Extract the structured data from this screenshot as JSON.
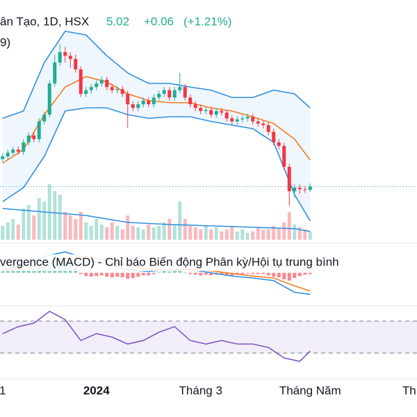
{
  "header": {
    "symbol": "ân Tạo, 1D, HSX",
    "price": "5.02",
    "change": "+0.06",
    "change_pct": "(+1.21%)",
    "indicator": "9)"
  },
  "chart_data": [
    {
      "type": "candlestick",
      "xlim": [
        -0.5,
        79.5
      ],
      "ylim": [
        4.0,
        8.6
      ],
      "up_color": "#22ab94",
      "down_color": "#f23645",
      "last_price_line": true,
      "open": [
        5.55,
        5.6,
        5.67,
        5.73,
        5.69,
        5.87,
        6.0,
        5.93,
        6.27,
        6.4,
        7.0,
        7.4,
        7.6,
        7.53,
        7.47,
        7.27,
        6.8,
        6.87,
        6.93,
        7.0,
        7.07,
        6.93,
        6.87,
        6.89,
        6.8,
        6.6,
        6.53,
        6.6,
        6.67,
        6.6,
        6.73,
        6.8,
        6.87,
        6.73,
        6.87,
        6.93,
        6.73,
        6.6,
        6.53,
        6.47,
        6.49,
        6.4,
        6.47,
        6.44,
        6.33,
        6.27,
        6.31,
        6.33,
        6.36,
        6.27,
        6.23,
        6.2,
        6.07,
        5.87,
        5.8,
        5.4,
        4.93,
        5.0,
        4.97,
        4.96
      ],
      "high": [
        5.66,
        5.73,
        5.79,
        5.79,
        5.93,
        6.06,
        6.06,
        6.33,
        6.46,
        7.06,
        7.55,
        7.75,
        7.7,
        7.6,
        7.55,
        7.33,
        6.93,
        6.99,
        7.06,
        7.13,
        7.13,
        6.99,
        6.95,
        6.95,
        6.86,
        6.66,
        6.66,
        6.73,
        6.73,
        6.79,
        6.86,
        6.93,
        6.93,
        6.93,
        7.2,
        6.99,
        6.79,
        6.66,
        6.59,
        6.55,
        6.55,
        6.53,
        6.53,
        6.5,
        6.39,
        6.37,
        6.39,
        6.42,
        6.42,
        6.33,
        6.29,
        6.26,
        6.13,
        5.93,
        5.86,
        5.46,
        5.06,
        5.06,
        5.03,
        5.08
      ],
      "low": [
        5.49,
        5.54,
        5.61,
        5.63,
        5.63,
        5.81,
        5.87,
        5.87,
        6.21,
        6.34,
        6.94,
        7.34,
        7.4,
        7.3,
        7.21,
        6.74,
        6.74,
        6.81,
        6.87,
        6.94,
        6.87,
        6.81,
        6.81,
        6.74,
        6.15,
        6.47,
        6.47,
        6.54,
        6.54,
        6.54,
        6.67,
        6.74,
        6.67,
        6.67,
        6.81,
        6.67,
        6.54,
        6.47,
        6.41,
        6.41,
        6.34,
        6.34,
        6.38,
        6.27,
        6.21,
        6.21,
        6.25,
        6.27,
        6.21,
        6.17,
        6.14,
        6.01,
        5.81,
        5.74,
        5.34,
        4.65,
        4.8,
        4.88,
        4.9,
        4.92
      ],
      "close": [
        5.6,
        5.67,
        5.73,
        5.69,
        5.87,
        6.0,
        5.93,
        6.27,
        6.4,
        7.0,
        7.4,
        7.6,
        7.53,
        7.47,
        7.27,
        6.8,
        6.87,
        6.93,
        7.0,
        7.07,
        6.93,
        6.87,
        6.89,
        6.8,
        6.6,
        6.53,
        6.6,
        6.67,
        6.6,
        6.73,
        6.8,
        6.87,
        6.73,
        6.87,
        6.93,
        6.73,
        6.6,
        6.53,
        6.47,
        6.49,
        6.4,
        6.47,
        6.44,
        6.33,
        6.27,
        6.31,
        6.33,
        6.36,
        6.27,
        6.23,
        6.2,
        6.07,
        5.87,
        5.8,
        5.4,
        4.93,
        5.0,
        4.97,
        4.96,
        5.02
      ],
      "lines": [
        {
          "color": "#f57c1f",
          "x": [
            0,
            4,
            8,
            12,
            16,
            20,
            24,
            28,
            32,
            36,
            40,
            44,
            48,
            52,
            56,
            59
          ],
          "values": [
            5.47,
            5.73,
            6.4,
            6.93,
            7.13,
            7.03,
            6.8,
            6.67,
            6.63,
            6.63,
            6.53,
            6.47,
            6.36,
            6.23,
            5.93,
            5.53
          ]
        },
        {
          "color": "#2f8fe0",
          "x": [
            0,
            4,
            8,
            12,
            16,
            20,
            24,
            28,
            32,
            36,
            40,
            44,
            48,
            52,
            56,
            59
          ],
          "values": [
            6.33,
            6.47,
            7.4,
            8.0,
            7.93,
            7.53,
            7.2,
            7.0,
            7.0,
            6.93,
            6.87,
            6.73,
            6.73,
            6.87,
            6.8,
            6.53
          ]
        },
        {
          "color": "#2f8fe0",
          "x": [
            0,
            4,
            8,
            12,
            16,
            20,
            24,
            28,
            32,
            36,
            40,
            44,
            48,
            52,
            56,
            59
          ],
          "values": [
            4.73,
            5.0,
            5.6,
            6.47,
            6.53,
            6.53,
            6.4,
            6.33,
            6.36,
            6.36,
            6.27,
            6.2,
            6.13,
            5.87,
            4.87,
            4.36
          ]
        }
      ],
      "band_fill": "#2f8fe0",
      "volume": {
        "ylim": [
          0,
          100
        ],
        "values": [
          20,
          25,
          30,
          22,
          45,
          50,
          35,
          60,
          55,
          80,
          70,
          65,
          40,
          35,
          30,
          40,
          25,
          20,
          30,
          22,
          18,
          25,
          20,
          15,
          35,
          20,
          18,
          15,
          22,
          18,
          20,
          25,
          30,
          22,
          55,
          30,
          20,
          18,
          15,
          20,
          15,
          18,
          12,
          15,
          20,
          12,
          15,
          10,
          12,
          18,
          14,
          15,
          20,
          16,
          25,
          40,
          22,
          18,
          15,
          12
        ],
        "ma": {
          "color": "#2f8fe0",
          "x": [
            0,
            8,
            16,
            24,
            32,
            40,
            48,
            56,
            59
          ],
          "values": [
            45,
            40,
            35,
            25,
            22,
            20,
            18,
            16,
            12
          ]
        }
      }
    },
    {
      "type": "macd",
      "title": "vergence (MACD) - Chỉ báo Biến động Phân kỳ/Hội tụ trung bình",
      "xlim": [
        -0.5,
        79.5
      ],
      "ylim": [
        -0.4,
        0.4
      ],
      "up_color": "#22ab94",
      "down_color": "#f23645",
      "histogram": [
        0.02,
        0.03,
        0.04,
        0.03,
        0.05,
        0.06,
        0.05,
        0.08,
        0.1,
        0.18,
        0.25,
        0.28,
        0.22,
        0.16,
        0.1,
        -0.02,
        -0.05,
        -0.06,
        -0.05,
        -0.04,
        -0.06,
        -0.07,
        -0.06,
        -0.07,
        -0.09,
        -0.08,
        -0.06,
        -0.04,
        -0.04,
        -0.02,
        0.01,
        0.03,
        0.02,
        0.03,
        0.04,
        0.01,
        -0.02,
        -0.03,
        -0.04,
        -0.03,
        -0.04,
        -0.03,
        -0.02,
        -0.03,
        -0.04,
        -0.03,
        -0.02,
        -0.01,
        -0.02,
        -0.02,
        -0.02,
        -0.04,
        -0.06,
        -0.07,
        -0.1,
        -0.12,
        -0.08,
        -0.05,
        -0.03,
        -0.02
      ],
      "lines": [
        {
          "color": "#2f8fe0",
          "x": [
            0,
            4,
            8,
            12,
            16,
            20,
            24,
            28,
            32,
            36,
            40,
            44,
            48,
            52,
            56,
            59
          ],
          "values": [
            0.05,
            0.1,
            0.25,
            0.32,
            0.22,
            0.12,
            0.05,
            0.02,
            0.05,
            0.05,
            0.0,
            -0.05,
            -0.08,
            -0.12,
            -0.3,
            -0.33
          ]
        },
        {
          "color": "#f57c1f",
          "x": [
            0,
            4,
            8,
            12,
            16,
            20,
            24,
            28,
            32,
            36,
            40,
            44,
            48,
            52,
            56,
            59
          ],
          "values": [
            0.03,
            0.07,
            0.15,
            0.22,
            0.25,
            0.18,
            0.1,
            0.05,
            0.04,
            0.05,
            0.03,
            -0.01,
            -0.05,
            -0.08,
            -0.2,
            -0.28
          ]
        }
      ]
    },
    {
      "type": "rsi",
      "xlim": [
        -0.5,
        79.5
      ],
      "ylim": [
        0,
        100
      ],
      "bands": [
        30,
        70
      ],
      "color": "#7e57c2",
      "x": [
        0,
        3,
        6,
        9,
        12,
        15,
        18,
        21,
        24,
        27,
        30,
        33,
        36,
        39,
        42,
        45,
        48,
        51,
        54,
        57,
        59
      ],
      "values": [
        54.3,
        63.0,
        67.4,
        82.2,
        71.7,
        45.7,
        54.3,
        50.0,
        41.3,
        45.7,
        56.1,
        63.0,
        45.7,
        41.3,
        45.7,
        41.3,
        41.3,
        37.0,
        23.9,
        19.6,
        32.6
      ],
      "xticks": [
        {
          "value": 0,
          "label": "1"
        },
        {
          "value": 18,
          "label": "2024"
        },
        {
          "value": 38,
          "label": "Tháng 3"
        },
        {
          "value": 59,
          "label": "Tháng Năm"
        },
        {
          "value": 78,
          "label": "Th"
        }
      ]
    }
  ]
}
